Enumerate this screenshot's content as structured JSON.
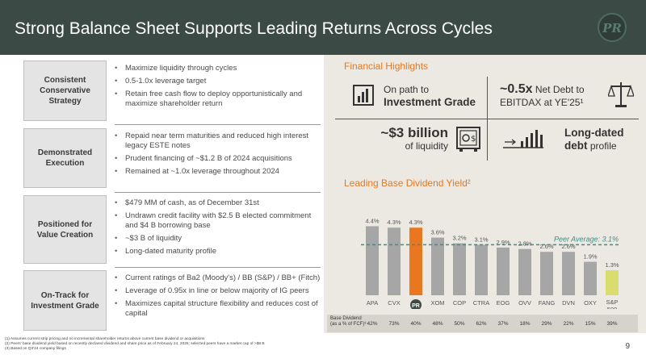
{
  "header": {
    "title": "Strong Balance Sheet Supports Leading Returns Across Cycles",
    "logo_text": "PR"
  },
  "rows": [
    {
      "label": "Consistent Conservative Strategy",
      "bullets": [
        "Maximize liquidity through cycles",
        "0.5-1.0x leverage target",
        "Retain free cash flow to deploy opportunistically and maximize shareholder return"
      ]
    },
    {
      "label": "Demonstrated Execution",
      "bullets": [
        "Repaid near term maturities and reduced high interest legacy ESTE notes",
        "Prudent financing of ~$1.2 B of 2024 acquisitions",
        "Remained at ~1.0x leverage throughout 2024"
      ]
    },
    {
      "label": "Positioned for Value Creation",
      "bullets": [
        "$479 MM of cash, as of December 31st",
        "Undrawn credit facility with $2.5 B elected commitment and $4 B borrowing base",
        "~$3 B of liquidity",
        "Long-dated maturity profile"
      ]
    },
    {
      "label": "On-Track for Investment Grade",
      "bullets": [
        "Current ratings of Ba2 (Moody's) / BB (S&P) / BB+ (Fitch)",
        "Leverage of 0.95x in line or below majority of IG peers",
        "Maximizes capital structure flexibility and reduces cost of capital"
      ]
    }
  ],
  "highlights": {
    "title": "Financial Highlights",
    "ig_line1": "On path to",
    "ig_line2": "Investment Grade",
    "nd_big": "~0.5x",
    "nd_rest": "Net Debt to",
    "nd_line2": "EBITDAX at YE'25¹",
    "liq_big": "~$3 billion",
    "liq_line2": "of liquidity",
    "debt_line1": "Long-dated",
    "debt_line2": "debt",
    "debt_rest": "profile"
  },
  "chart_data": {
    "type": "bar",
    "title": "Leading Base Dividend Yield²",
    "categories": [
      "APA",
      "CVX",
      "PR",
      "XOM",
      "COP",
      "CTRA",
      "EOG",
      "OVV",
      "FANG",
      "DVN",
      "OXY",
      "S&P 500"
    ],
    "values": [
      4.4,
      4.3,
      4.3,
      3.6,
      3.2,
      3.1,
      2.9,
      2.8,
      2.6,
      2.6,
      1.9,
      1.3
    ],
    "value_labels": [
      "4.4%",
      "4.3%",
      "4.3%",
      "3.6%",
      "3.2%",
      "3.1%",
      "2.9%",
      "2.8%",
      "2.6%",
      "2.6%",
      "1.9%",
      "1.3%"
    ],
    "peer_average": 3.1,
    "peer_label": "Peer Average: 3.1%",
    "ylim": [
      0,
      5
    ],
    "colors": {
      "peer": "#a6a6a6",
      "pr": "#e8771f",
      "sp500": "#d8dd6e",
      "avg_line": "#3a8f8a"
    }
  },
  "table": {
    "label": "Base Dividend (as a % of FCF)³",
    "values": [
      "42%",
      "73%",
      "40%",
      "48%",
      "50%",
      "62%",
      "37%",
      "18%",
      "29%",
      "22%",
      "15%",
      "39%"
    ]
  },
  "footnotes": [
    "(1)   Assumes current strip pricing and no incremental shareholder returns above current base dividend or acquisitions",
    "(2)   Peers' base dividend yield based on recently declared dividend and share price as of February 24, 2025; selected peers have a market cap of >$8 B",
    "(3)   Based on Q3'24 company filings"
  ],
  "page_number": "9"
}
